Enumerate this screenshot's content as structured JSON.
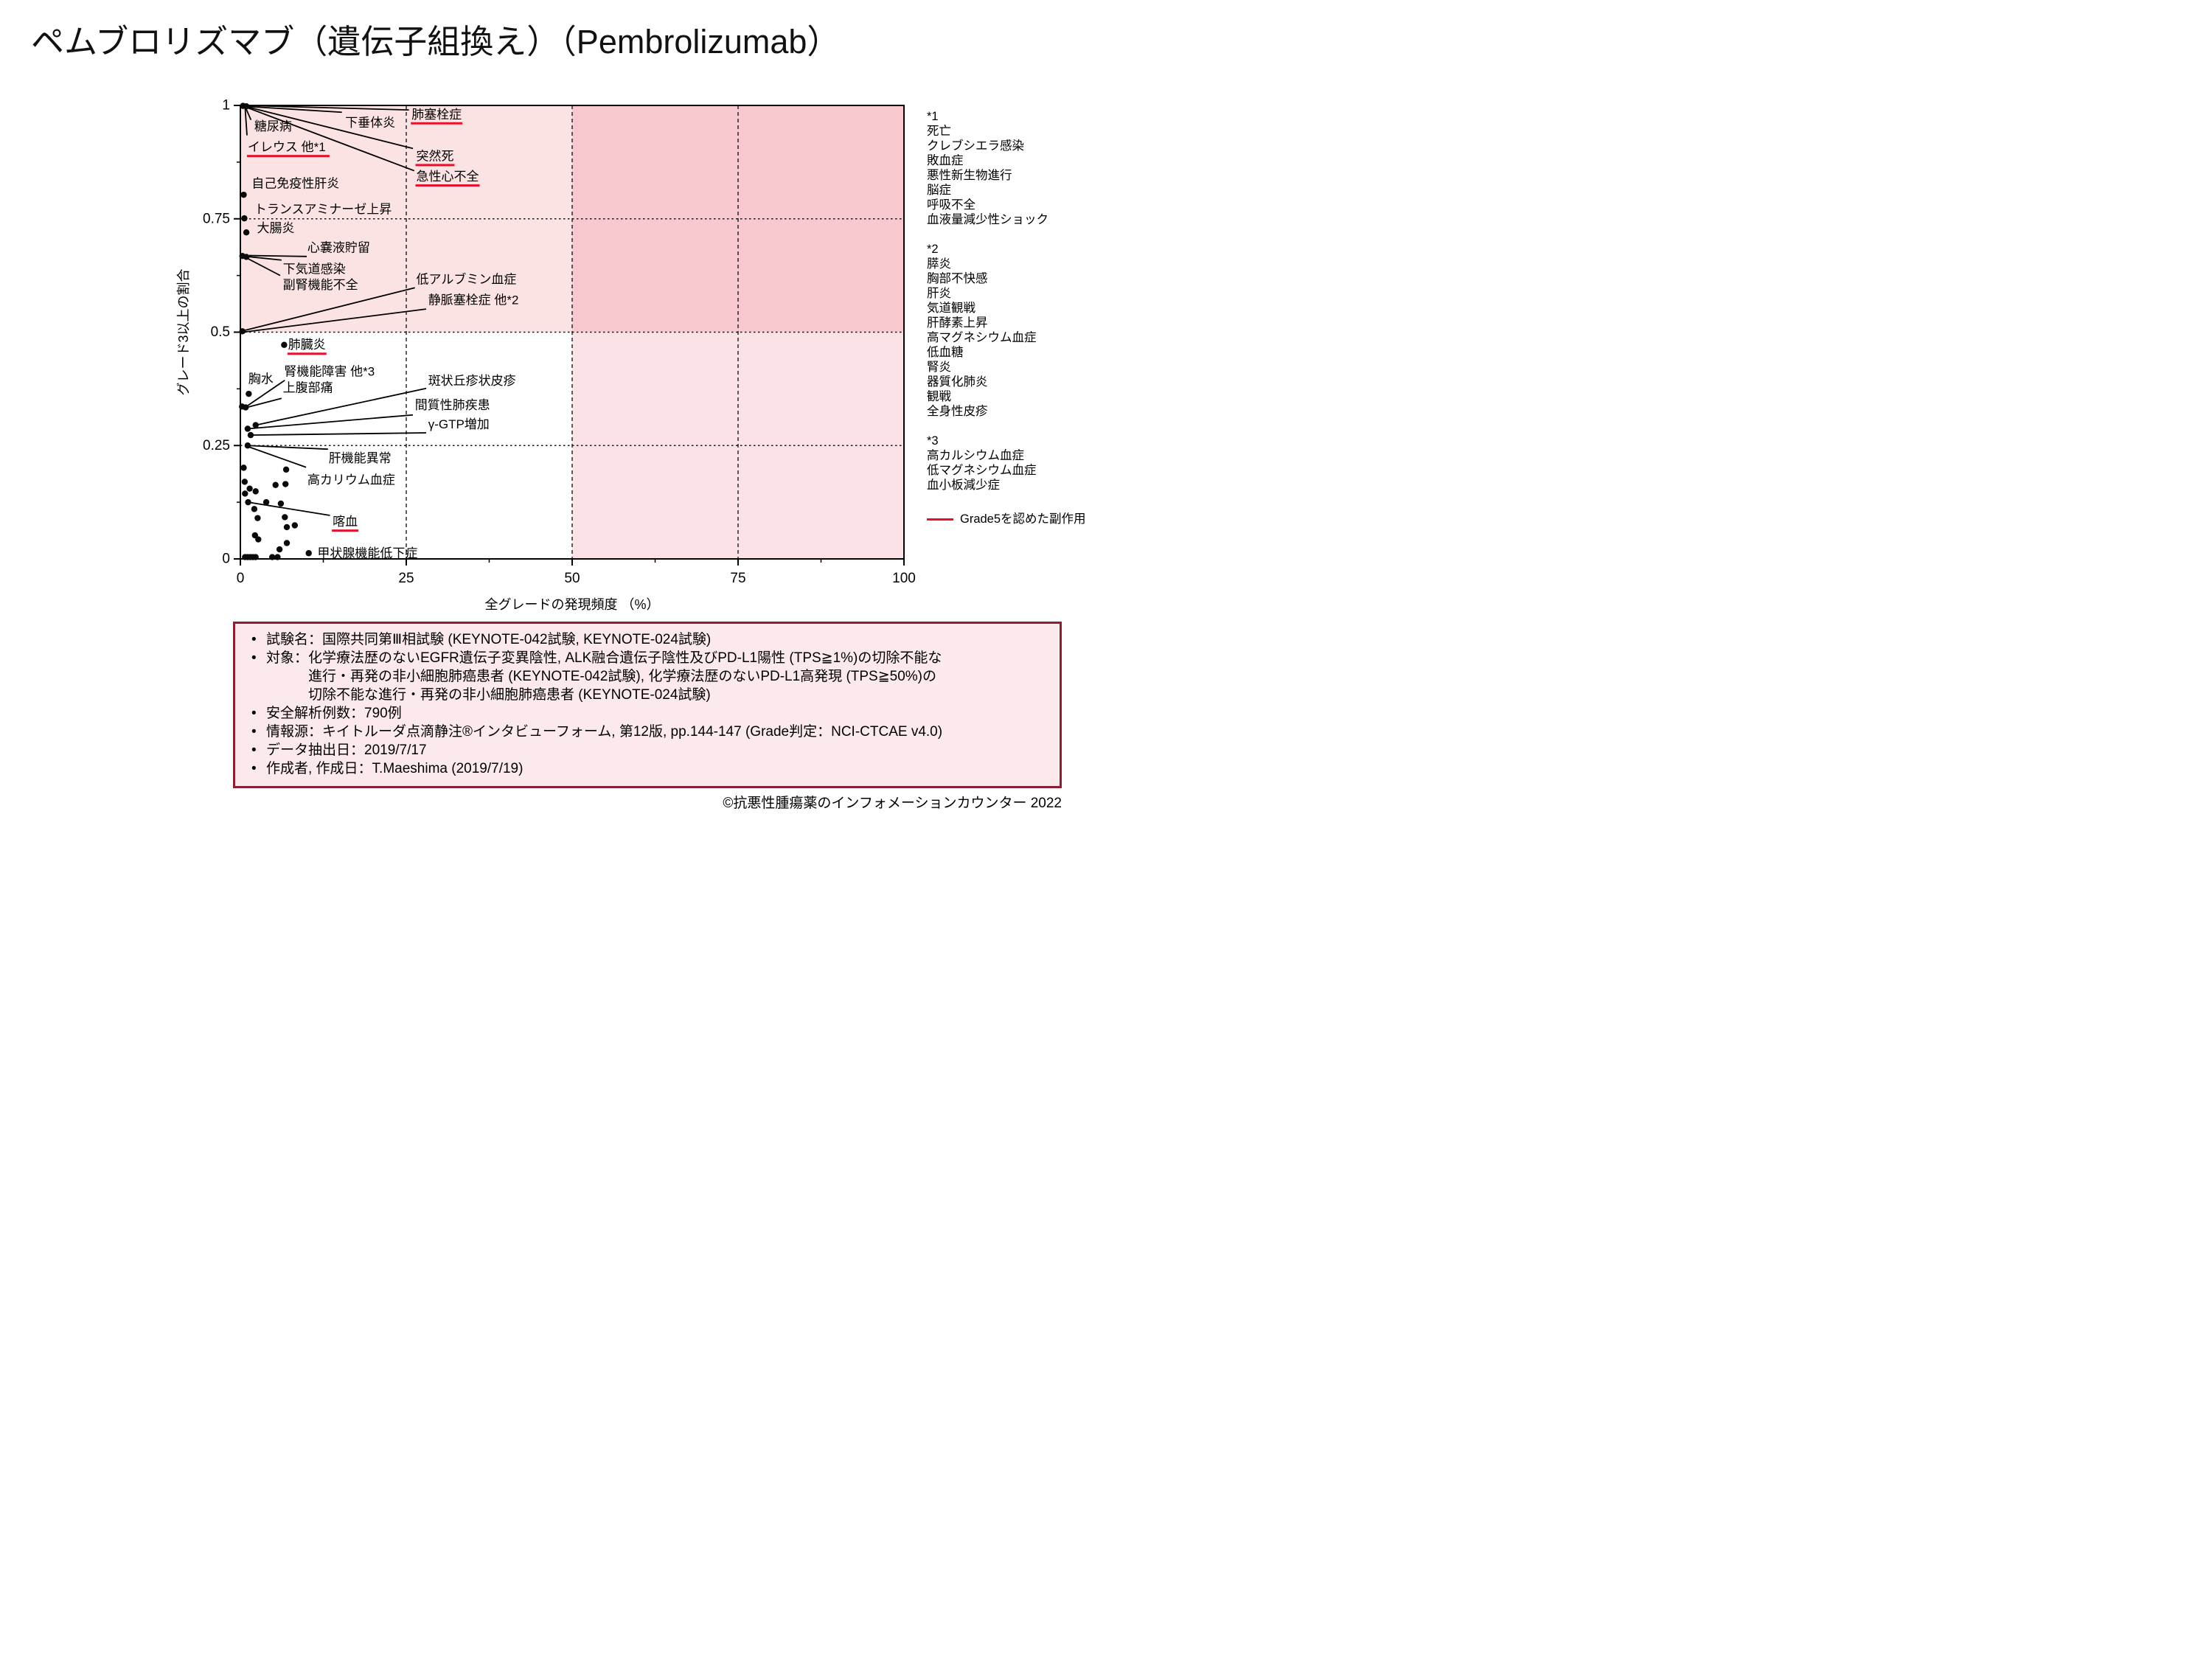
{
  "title": "ペムブロリズマブ（遺伝子組換え）（Pembrolizumab）",
  "footer": "©抗悪性腫瘍薬のインフォメーションカウンター 2022",
  "legend": {
    "label": "Grade5を認めた副作用",
    "color": "#e8112d"
  },
  "side_notes": [
    {
      "heading": "*1",
      "items": [
        "死亡",
        "クレブシエラ感染",
        "敗血症",
        "悪性新生物進行",
        "脳症",
        "呼吸不全",
        "血液量減少性ショック"
      ]
    },
    {
      "heading": "*2",
      "items": [
        "膵炎",
        "胸部不快感",
        "肝炎",
        "気道観戦",
        "肝酵素上昇",
        "高マグネシウム血症",
        "低血糖",
        "腎炎",
        "器質化肺炎",
        "観戦",
        "全身性皮疹"
      ]
    },
    {
      "heading": "*3",
      "items": [
        "高カルシウム血症",
        "低マグネシウム血症",
        "血小板減少症"
      ]
    }
  ],
  "info_box": {
    "bullets": [
      "試験名：国際共同第Ⅲ相試験 (KEYNOTE-042試験, KEYNOTE-024試験)",
      "対象：化学療法歴のないEGFR遺伝子変異陰性, ALK融合遺伝子陰性及びPD-L1陽性 (TPS≧1%)の切除不能な\n　　　進行・再発の非小細胞肺癌患者 (KEYNOTE-042試験), 化学療法歴のないPD-L1高発現 (TPS≧50%)の\n　　　切除不能な進行・再発の非小細胞肺癌患者 (KEYNOTE-024試験)",
      "安全解析例数：790例",
      "情報源：キイトルーダ点滴静注®インタビューフォーム, 第12版, pp.144-147 (Grade判定：NCI-CTCAE v4.0)",
      "データ抽出日：2019/7/17",
      "作成者, 作成日：T.Maeshima (2019/7/19)"
    ]
  },
  "chart_data": {
    "type": "scatter",
    "title": "",
    "xlabel": "全グレードの発現頻度 （%）",
    "ylabel": "グレード3以上の割合",
    "xlim": [
      0,
      100
    ],
    "ylim": [
      0,
      1
    ],
    "xticks": [
      0,
      25,
      50,
      75,
      100
    ],
    "yticks": [
      0,
      0.25,
      0.5,
      0.75,
      1
    ],
    "xminor": [
      12.5,
      37.5,
      62.5,
      87.5
    ],
    "yminor": [
      0.125,
      0.375,
      0.625,
      0.875
    ],
    "grid_x": [
      25,
      50,
      75
    ],
    "grid_y": [
      0.25,
      0.5,
      0.75
    ],
    "regions": [
      {
        "x0": 0,
        "x1": 50,
        "y0": 0.5,
        "y1": 1,
        "color": "#fce3e3"
      },
      {
        "x0": 50,
        "x1": 100,
        "y0": 0.5,
        "y1": 1,
        "color": "#f9c8ce"
      },
      {
        "x0": 50,
        "x1": 100,
        "y0": 0,
        "y1": 0.5,
        "color": "#fce2e6"
      }
    ],
    "grade5_color": "#e8112d",
    "points": [
      [
        0.4,
        0.999
      ],
      [
        0.9,
        0.998
      ],
      [
        0.5,
        0.803
      ],
      [
        0.6,
        0.751
      ],
      [
        0.9,
        0.72
      ],
      [
        0.3,
        0.668
      ],
      [
        0.9,
        0.666
      ],
      [
        0.3,
        0.502
      ],
      [
        6.6,
        0.472
      ],
      [
        0.25,
        0.336
      ],
      [
        0.8,
        0.334
      ],
      [
        1.26,
        0.364
      ],
      [
        2.3,
        0.295
      ],
      [
        1.1,
        0.287
      ],
      [
        1.55,
        0.273
      ],
      [
        1.1,
        0.25
      ],
      [
        0.5,
        0.201
      ],
      [
        6.9,
        0.197
      ],
      [
        0.65,
        0.17
      ],
      [
        6.8,
        0.165
      ],
      [
        5.3,
        0.163
      ],
      [
        1.4,
        0.155
      ],
      [
        2.3,
        0.149
      ],
      [
        0.7,
        0.144
      ],
      [
        1.17,
        0.125
      ],
      [
        3.9,
        0.125
      ],
      [
        6.1,
        0.122
      ],
      [
        2.1,
        0.11
      ],
      [
        2.6,
        0.09
      ],
      [
        6.7,
        0.092
      ],
      [
        8.2,
        0.074
      ],
      [
        7.0,
        0.07
      ],
      [
        2.2,
        0.052
      ],
      [
        2.7,
        0.043
      ],
      [
        7.0,
        0.035
      ],
      [
        5.9,
        0.021
      ],
      [
        10.3,
        0.0126
      ],
      [
        0.7,
        0.004
      ],
      [
        1.1,
        0.004
      ],
      [
        1.5,
        0.004
      ],
      [
        1.9,
        0.004
      ],
      [
        2.3,
        0.004
      ],
      [
        4.8,
        0.004
      ],
      [
        5.6,
        0.004
      ]
    ],
    "annotations": [
      {
        "text": "糖尿病",
        "x": 2.1,
        "y": 0.954
      },
      {
        "text": "下垂体炎",
        "x": 15.8,
        "y": 0.962
      },
      {
        "text": "肺塞栓症",
        "x": 25.8,
        "y": 0.98,
        "u": true
      },
      {
        "text": "イレウス 他*1",
        "x": 1.1,
        "y": 0.908,
        "u": true
      },
      {
        "text": "突然死",
        "x": 26.5,
        "y": 0.888,
        "u": true
      },
      {
        "text": "急性心不全",
        "x": 26.5,
        "y": 0.843,
        "u": true
      },
      {
        "text": "自己免疫性肝炎",
        "x": 1.7,
        "y": 0.828
      },
      {
        "text": "トランスアミナーゼ上昇",
        "x": 2.1,
        "y": 0.771
      },
      {
        "text": "大腸炎",
        "x": 2.5,
        "y": 0.729
      },
      {
        "text": "心嚢液貯留",
        "x": 10.1,
        "y": 0.686
      },
      {
        "text": "下気道感染",
        "x": 6.4,
        "y": 0.639
      },
      {
        "text": "副腎機能不全",
        "x": 6.4,
        "y": 0.604
      },
      {
        "text": "低アルブミン血症",
        "x": 26.5,
        "y": 0.616
      },
      {
        "text": "静脈塞栓症 他*2",
        "x": 28.3,
        "y": 0.571
      },
      {
        "text": "肺臓炎",
        "x": 7.2,
        "y": 0.472,
        "u": true
      },
      {
        "text": "胸水",
        "x": 1.2,
        "y": 0.397
      },
      {
        "text": "腎機能障害 他*3",
        "x": 6.6,
        "y": 0.413
      },
      {
        "text": "上腹部痛",
        "x": 6.4,
        "y": 0.377
      },
      {
        "text": "斑状丘疹状皮疹",
        "x": 28.3,
        "y": 0.393
      },
      {
        "text": "間質性肺疾患",
        "x": 26.3,
        "y": 0.339
      },
      {
        "text": "γ-GTP増加",
        "x": 28.3,
        "y": 0.297
      },
      {
        "text": "肝機能異常",
        "x": 13.3,
        "y": 0.222
      },
      {
        "text": "高カリウム血症",
        "x": 10.1,
        "y": 0.174
      },
      {
        "text": "喀血",
        "x": 13.9,
        "y": 0.082,
        "u": true
      },
      {
        "text": "甲状腺機能低下症",
        "x": 11.6,
        "y": 0.012
      }
    ],
    "leaders": [
      [
        0.7,
        0.998,
        1.6,
        0.968
      ],
      [
        0.7,
        0.998,
        15.3,
        0.985
      ],
      [
        0.7,
        1.0,
        25.4,
        0.99
      ],
      [
        0.7,
        0.998,
        1.0,
        0.934
      ],
      [
        0.7,
        0.998,
        26.0,
        0.905
      ],
      [
        0.7,
        0.997,
        26.2,
        0.856
      ],
      [
        1.3,
        0.669,
        10.0,
        0.667
      ],
      [
        0.9,
        0.667,
        6.2,
        0.659
      ],
      [
        0.9,
        0.664,
        6.0,
        0.625
      ],
      [
        0.4,
        0.503,
        26.3,
        0.598
      ],
      [
        0.4,
        0.5,
        28.0,
        0.551
      ],
      [
        1.1,
        0.338,
        6.7,
        0.394
      ],
      [
        1.2,
        0.335,
        6.2,
        0.354
      ],
      [
        2.3,
        0.295,
        28.0,
        0.376
      ],
      [
        1.1,
        0.287,
        26.0,
        0.3175
      ],
      [
        1.55,
        0.273,
        28.0,
        0.278
      ],
      [
        1.1,
        0.25,
        13.2,
        0.242
      ],
      [
        1.1,
        0.248,
        9.9,
        0.202
      ],
      [
        1.17,
        0.125,
        13.5,
        0.096
      ]
    ]
  }
}
